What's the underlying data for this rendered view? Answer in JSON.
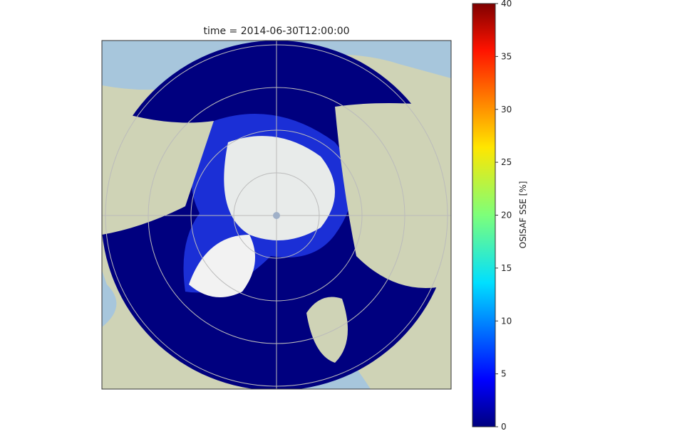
{
  "title": "time = 2014-06-30T12:00:00",
  "colorbar": {
    "label": "OSISAF SSE [%]",
    "lim": [
      0,
      40
    ],
    "ticks": [
      0,
      5,
      10,
      15,
      20,
      25,
      30,
      35,
      40
    ],
    "colormap": "jet"
  }
}
